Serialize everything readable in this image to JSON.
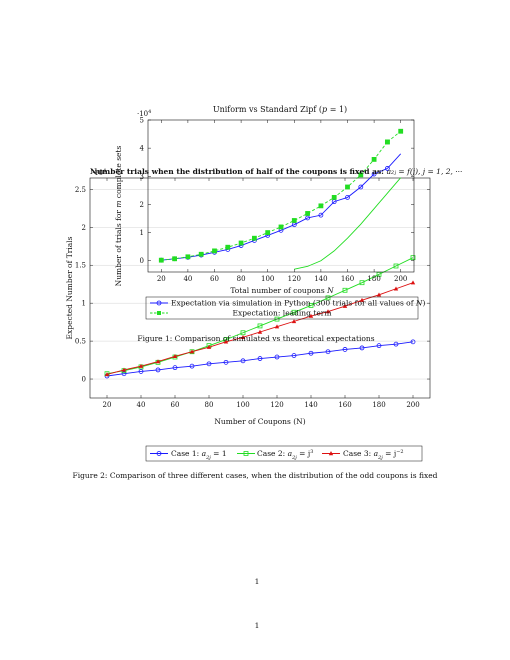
{
  "chart_data": [
    {
      "type": "line",
      "title": "Uniform vs Standard Zipf (p = 1)",
      "xlabel": "Total number of coupons N",
      "ylabel": "Number of trials for m complete sets",
      "y_multiplier": "·10⁴",
      "xlim": [
        10,
        210
      ],
      "ylim": [
        -0.4,
        5
      ],
      "xticks": [
        20,
        40,
        60,
        80,
        100,
        120,
        140,
        160,
        180,
        200
      ],
      "yticks": [
        0,
        1,
        2,
        3,
        4,
        5
      ],
      "legend_position": "bottom",
      "series": [
        {
          "name": "Expectation via simulation in Python (300 trials for all values of N)",
          "color": "#1a1aff",
          "marker": "circle",
          "dash": false,
          "x": [
            20,
            30,
            40,
            50,
            60,
            70,
            80,
            90,
            100,
            110,
            120,
            130,
            140,
            150,
            160,
            170,
            180,
            190
          ],
          "y": [
            0.02,
            0.07,
            0.12,
            0.2,
            0.3,
            0.4,
            0.54,
            0.72,
            0.9,
            1.08,
            1.28,
            1.52,
            1.62,
            2.1,
            2.25,
            2.62,
            3.08,
            3.28
          ]
        },
        {
          "name": "Expectation: leading term",
          "color": "#22dd22",
          "marker": "square",
          "dash": true,
          "x": [
            20,
            30,
            40,
            50,
            60,
            70,
            80,
            90,
            100,
            110,
            120,
            130,
            140,
            150,
            160,
            170,
            180,
            190
          ],
          "y": [
            0.02,
            0.07,
            0.14,
            0.23,
            0.35,
            0.48,
            0.63,
            0.8,
            1.0,
            1.2,
            1.43,
            1.68,
            1.95,
            2.25,
            2.62,
            3.05,
            3.6,
            4.22
          ]
        },
        {
          "name": "",
          "color": "#22dd22",
          "marker": "none",
          "dash": false,
          "x": [
            120,
            130,
            140,
            150,
            160,
            170,
            180,
            190,
            200
          ],
          "y": [
            -0.3,
            -0.2,
            0.0,
            0.35,
            0.8,
            1.3,
            1.85,
            2.4,
            2.95
          ]
        },
        {
          "name": "",
          "color": "#1a1aff",
          "marker": "none",
          "dash": false,
          "x": [
            190,
            200
          ],
          "y": [
            3.28,
            3.8
          ]
        },
        {
          "name": "",
          "color": "#22dd22",
          "marker": "square",
          "dash": true,
          "x": [
            190,
            200
          ],
          "y": [
            4.22,
            4.6
          ]
        }
      ]
    },
    {
      "type": "line",
      "title": "Number trials when the distribution of half of the coupons is fixed as: a_{2j} = f(j), j = 1, 2, ···",
      "xlabel": "Number of Coupons (N)",
      "ylabel": "Expected Number of Trials",
      "y_multiplier": "·10⁴",
      "xlim": [
        10,
        210
      ],
      "ylim": [
        -0.25,
        2.65
      ],
      "xticks": [
        20,
        40,
        60,
        80,
        100,
        120,
        140,
        160,
        180,
        200
      ],
      "yticks": [
        0,
        0.5,
        1,
        1.5,
        2,
        2.5
      ],
      "legend_position": "bottom",
      "series": [
        {
          "name": "Case 1: a_{2j} = 1",
          "color": "#1a1aff",
          "marker": "circle",
          "x": [
            20,
            30,
            40,
            50,
            60,
            70,
            80,
            90,
            100,
            110,
            120,
            130,
            140,
            150,
            160,
            170,
            180,
            190,
            200
          ],
          "y": [
            0.04,
            0.07,
            0.1,
            0.12,
            0.15,
            0.17,
            0.2,
            0.22,
            0.24,
            0.27,
            0.29,
            0.31,
            0.34,
            0.36,
            0.39,
            0.41,
            0.44,
            0.46,
            0.49
          ]
        },
        {
          "name": "Case 2: a_{2j} = j³",
          "color": "#22dd22",
          "marker": "square",
          "x": [
            20,
            30,
            40,
            50,
            60,
            70,
            80,
            90,
            100,
            110,
            120,
            130,
            140,
            150,
            160,
            170,
            180,
            190,
            200
          ],
          "y": [
            0.07,
            0.11,
            0.16,
            0.22,
            0.29,
            0.36,
            0.44,
            0.52,
            0.61,
            0.7,
            0.79,
            0.88,
            0.97,
            1.07,
            1.17,
            1.27,
            1.38,
            1.49,
            1.6
          ]
        },
        {
          "name": "Case 3: a_{2j} = j⁻²",
          "color": "#dd1111",
          "marker": "triangle",
          "x": [
            20,
            30,
            40,
            50,
            60,
            70,
            80,
            90,
            100,
            110,
            120,
            130,
            140,
            150,
            160,
            170,
            180,
            190,
            200
          ],
          "y": [
            0.06,
            0.12,
            0.17,
            0.23,
            0.3,
            0.36,
            0.42,
            0.49,
            0.55,
            0.62,
            0.69,
            0.76,
            0.83,
            0.89,
            0.96,
            1.04,
            1.11,
            1.19,
            1.27
          ]
        }
      ]
    }
  ],
  "figure1": {
    "title_prefix": "Uniform vs Standard Zipf (",
    "title_var": "p",
    "title_suffix": " = 1)",
    "ylabel_prefix": "Number of trials for ",
    "ylabel_var": "m",
    "ylabel_suffix": " complete sets",
    "xlabel_prefix": "Total number of coupons ",
    "xlabel_var": "N",
    "multiplier_base": "·10",
    "multiplier_exp": "4",
    "legend_sim_prefix": "Expectation via simulation in Python (300 trials for all values of ",
    "legend_sim_var": "N",
    "legend_sim_suffix": ")",
    "legend_lead": "Expectation: leading term",
    "caption": "Figure 1: Comparison of simulated vs theoretical expectations"
  },
  "figure2": {
    "title_bold": "Number trials when the distribution of half of the coupons is fixed as: ",
    "title_math": "a₂ⱼ = f(j), j = 1, 2, ···",
    "multiplier_base": "·10",
    "multiplier_exp": "4",
    "xlabel": "Number of Coupons (N)",
    "ylabel": "Expected Number of Trials",
    "legend": [
      {
        "prefix": "Case 1: ",
        "var": "a",
        "sub": "2j",
        "eq": " = 1",
        "sup": ""
      },
      {
        "prefix": "Case 2: ",
        "var": "a",
        "sub": "2j",
        "eq": " = j",
        "sup": "3"
      },
      {
        "prefix": "Case 3: ",
        "var": "a",
        "sub": "2j",
        "eq": " = j",
        "sup": "−2"
      }
    ],
    "caption": "Figure 2: Comparison of three different cases, when the distribution of the odd coupons is fixed"
  },
  "page_number_upper": "1",
  "page_number_lower": "1"
}
